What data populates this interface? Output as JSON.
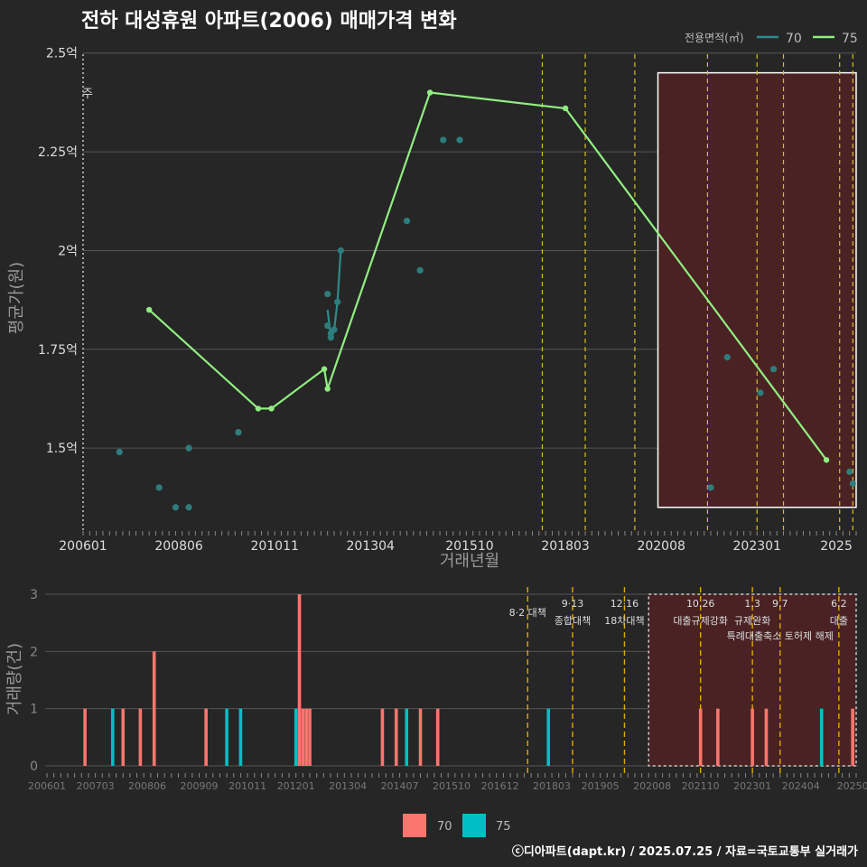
{
  "title": "전하 대성휴원 아파트(2006) 매매가격 변화",
  "legend_title": "전용면적(㎡)",
  "footer": "ⓒ디아파트(dapt.kr) / 2025.07.25 / 자료=국토교통부 실거래가",
  "price_chart": {
    "ylabel": "평균가(원)",
    "xlabel": "거래년월",
    "yticks": [
      {
        "v": 1.5,
        "label": "1.5억"
      },
      {
        "v": 1.75,
        "label": "1.75억"
      },
      {
        "v": 2.0,
        "label": "2억"
      },
      {
        "v": 2.25,
        "label": "2.25억"
      },
      {
        "v": 2.5,
        "label": "2.5억"
      }
    ],
    "ylim": [
      1.29,
      2.52
    ],
    "xticks": [
      {
        "m": 0,
        "label": "200601"
      },
      {
        "m": 29,
        "label": "200806"
      },
      {
        "m": 58,
        "label": "201011"
      },
      {
        "m": 87,
        "label": "201304"
      },
      {
        "m": 117,
        "label": "201510"
      },
      {
        "m": 146,
        "label": "201803"
      },
      {
        "m": 175,
        "label": "202008"
      },
      {
        "m": 204,
        "label": "202301"
      },
      {
        "m": 228,
        "label": "2025"
      }
    ],
    "xlim": [
      0,
      234
    ],
    "cut_label": "주",
    "series_70_points": [
      {
        "m": 11,
        "v": 1.49
      },
      {
        "m": 23,
        "v": 1.4
      },
      {
        "m": 28,
        "v": 1.35
      },
      {
        "m": 32,
        "v": 1.35
      },
      {
        "m": 32,
        "v": 1.5
      },
      {
        "m": 47,
        "v": 1.54
      },
      {
        "m": 74,
        "v": 1.89
      },
      {
        "m": 74,
        "v": 1.81
      },
      {
        "m": 75,
        "v": 1.78
      },
      {
        "m": 75,
        "v": 1.79
      },
      {
        "m": 76,
        "v": 1.8
      },
      {
        "m": 77,
        "v": 1.87
      },
      {
        "m": 78,
        "v": 2.0
      },
      {
        "m": 98,
        "v": 2.075
      },
      {
        "m": 102,
        "v": 1.95
      },
      {
        "m": 109,
        "v": 2.28
      },
      {
        "m": 114,
        "v": 2.28
      },
      {
        "m": 190,
        "v": 1.4
      },
      {
        "m": 195,
        "v": 1.73
      },
      {
        "m": 205,
        "v": 1.64
      },
      {
        "m": 209,
        "v": 1.7
      },
      {
        "m": 232,
        "v": 1.44
      },
      {
        "m": 233,
        "v": 1.41
      }
    ],
    "series_70_line": [
      {
        "m": 74,
        "v": 1.85
      },
      {
        "m": 75,
        "v": 1.78
      },
      {
        "m": 76,
        "v": 1.8
      },
      {
        "m": 77,
        "v": 1.87
      },
      {
        "m": 78,
        "v": 2.0
      }
    ],
    "series_75_line": [
      {
        "m": 20,
        "v": 1.85
      },
      {
        "m": 53,
        "v": 1.6
      },
      {
        "m": 57,
        "v": 1.6
      },
      {
        "m": 73,
        "v": 1.7
      },
      {
        "m": 74,
        "v": 1.65
      },
      {
        "m": 105,
        "v": 2.4
      },
      {
        "m": 146,
        "v": 2.36
      },
      {
        "m": 225,
        "v": 1.47
      }
    ],
    "policy_months": [
      139,
      152,
      167,
      189,
      204,
      212,
      229,
      233
    ],
    "highlight": {
      "m0": 174,
      "m1": 234,
      "v0": 1.35,
      "v1": 2.45
    }
  },
  "volume_chart": {
    "ylabel": "거래량(건)",
    "yticks": [
      0,
      1,
      2,
      3
    ],
    "xticks": [
      {
        "m": 0,
        "label": "200601"
      },
      {
        "m": 14,
        "label": "200703"
      },
      {
        "m": 29,
        "label": "200806"
      },
      {
        "m": 44,
        "label": "200909"
      },
      {
        "m": 58,
        "label": "201011"
      },
      {
        "m": 72,
        "label": "201201"
      },
      {
        "m": 87,
        "label": "201304"
      },
      {
        "m": 102,
        "label": "201407"
      },
      {
        "m": 117,
        "label": "201510"
      },
      {
        "m": 131,
        "label": "201612"
      },
      {
        "m": 146,
        "label": "201803"
      },
      {
        "m": 160,
        "label": "201905"
      },
      {
        "m": 175,
        "label": "202008"
      },
      {
        "m": 189,
        "label": "202110"
      },
      {
        "m": 204,
        "label": "202301"
      },
      {
        "m": 218,
        "label": "202404"
      },
      {
        "m": 233,
        "label": "20250"
      }
    ],
    "bars_70": [
      {
        "m": 11,
        "c": 1
      },
      {
        "m": 22,
        "c": 1
      },
      {
        "m": 27,
        "c": 1
      },
      {
        "m": 31,
        "c": 2
      },
      {
        "m": 46,
        "c": 1
      },
      {
        "m": 73,
        "c": 3
      },
      {
        "m": 74,
        "c": 1
      },
      {
        "m": 75,
        "c": 1
      },
      {
        "m": 76,
        "c": 1
      },
      {
        "m": 97,
        "c": 1
      },
      {
        "m": 101,
        "c": 1
      },
      {
        "m": 108,
        "c": 1
      },
      {
        "m": 113,
        "c": 1
      },
      {
        "m": 189,
        "c": 1
      },
      {
        "m": 194,
        "c": 1
      },
      {
        "m": 204,
        "c": 1
      },
      {
        "m": 208,
        "c": 1
      },
      {
        "m": 233,
        "c": 1
      }
    ],
    "bars_75": [
      {
        "m": 19,
        "c": 1
      },
      {
        "m": 52,
        "c": 1
      },
      {
        "m": 56,
        "c": 1
      },
      {
        "m": 72,
        "c": 1
      },
      {
        "m": 104,
        "c": 1
      },
      {
        "m": 145,
        "c": 1
      },
      {
        "m": 224,
        "c": 1
      }
    ],
    "policies": [
      {
        "m": 139,
        "l1": "8·2 대책",
        "l2": ""
      },
      {
        "m": 152,
        "l1": "9·13",
        "l2": "종합대책"
      },
      {
        "m": 167,
        "l1": "12·16",
        "l2": "18차대책"
      },
      {
        "m": 189,
        "l1": "10.26",
        "l2": "대출규제강화"
      },
      {
        "m": 204,
        "l1": "1.3",
        "l2": "규제완화"
      },
      {
        "m": 212,
        "l1": "9.7",
        "l2": "특례대출축소 토허제 해제"
      },
      {
        "m": 229,
        "l1": "6.2",
        "l2": "대출"
      }
    ],
    "highlight": {
      "m0": 174,
      "m1": 234
    }
  },
  "legend_items": [
    {
      "label": "70",
      "color": "#2e8b8b",
      "bar_color": "#00bfc4"
    },
    {
      "label": "75",
      "color": "#90ee80",
      "bar_color": "#f8766d"
    }
  ],
  "bottom_legend": [
    {
      "label": "70",
      "color": "#f8766d"
    },
    {
      "label": "75",
      "color": "#00bfc4"
    }
  ]
}
